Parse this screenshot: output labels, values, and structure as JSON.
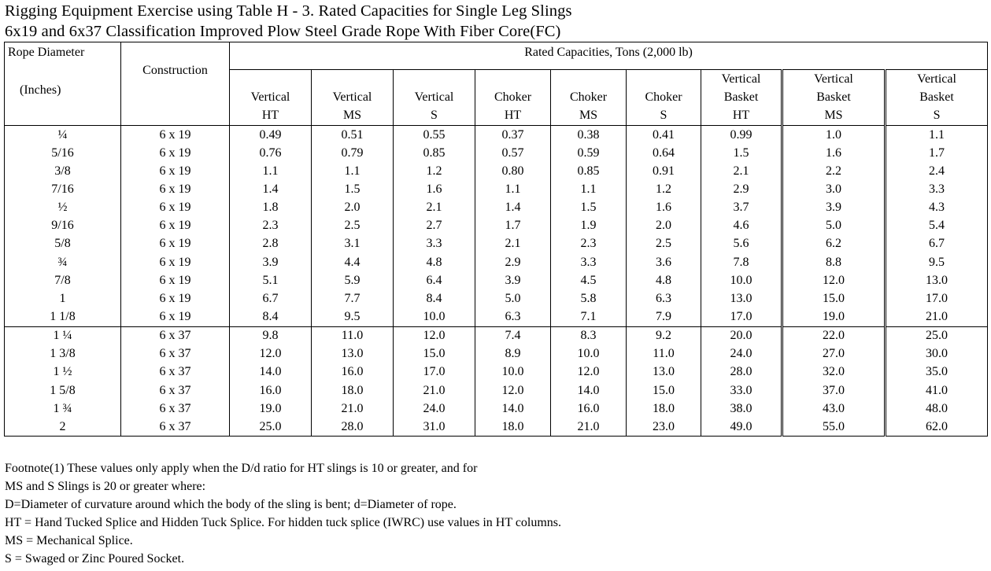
{
  "title": {
    "line1": "Rigging Equipment Exercise using Table H - 3. Rated Capacities for Single Leg Slings",
    "line2": "6x19 and 6x37 Classification Improved Plow Steel Grade Rope With Fiber Core(FC)"
  },
  "table": {
    "rope_header_1": "Rope Diameter",
    "rope_header_2": "(Inches)",
    "construction_header": "Construction",
    "rated_header": "Rated Capacities, Tons (2,000 lb)",
    "columns": [
      [
        "Vertical",
        "HT"
      ],
      [
        "Vertical",
        "MS"
      ],
      [
        "Vertical",
        "S"
      ],
      [
        "Choker",
        "HT"
      ],
      [
        "Choker",
        "MS"
      ],
      [
        "Choker",
        "S"
      ],
      [
        "Vertical",
        "Basket",
        "HT"
      ],
      [
        "Vertical",
        "Basket",
        "MS"
      ],
      [
        "Vertical",
        "Basket",
        "S"
      ]
    ],
    "rows": [
      [
        "¼",
        "6 x 19",
        "0.49",
        "0.51",
        "0.55",
        "0.37",
        "0.38",
        "0.41",
        "0.99",
        "1.0",
        "1.1"
      ],
      [
        "5/16",
        "6 x 19",
        "0.76",
        "0.79",
        "0.85",
        "0.57",
        "0.59",
        "0.64",
        "1.5",
        "1.6",
        "1.7"
      ],
      [
        "3/8",
        "6 x 19",
        "1.1",
        "1.1",
        "1.2",
        "0.80",
        "0.85",
        "0.91",
        "2.1",
        "2.2",
        "2.4"
      ],
      [
        "7/16",
        "6 x 19",
        "1.4",
        "1.5",
        "1.6",
        "1.1",
        "1.1",
        "1.2",
        "2.9",
        "3.0",
        "3.3"
      ],
      [
        "½",
        "6 x 19",
        "1.8",
        "2.0",
        "2.1",
        "1.4",
        "1.5",
        "1.6",
        "3.7",
        "3.9",
        "4.3"
      ],
      [
        "9/16",
        "6 x 19",
        "2.3",
        "2.5",
        "2.7",
        "1.7",
        "1.9",
        "2.0",
        "4.6",
        "5.0",
        "5.4"
      ],
      [
        "5/8",
        "6 x 19",
        "2.8",
        "3.1",
        "3.3",
        "2.1",
        "2.3",
        "2.5",
        "5.6",
        "6.2",
        "6.7"
      ],
      [
        "¾",
        "6 x 19",
        "3.9",
        "4.4",
        "4.8",
        "2.9",
        "3.3",
        "3.6",
        "7.8",
        "8.8",
        "9.5"
      ],
      [
        "7/8",
        "6 x 19",
        "5.1",
        "5.9",
        "6.4",
        "3.9",
        "4.5",
        "4.8",
        "10.0",
        "12.0",
        "13.0"
      ],
      [
        "1",
        "6 x 19",
        "6.7",
        "7.7",
        "8.4",
        "5.0",
        "5.8",
        "6.3",
        "13.0",
        "15.0",
        "17.0"
      ],
      [
        "1 1/8",
        "6 x 19",
        "8.4",
        "9.5",
        "10.0",
        "6.3",
        "7.1",
        "7.9",
        "17.0",
        "19.0",
        "21.0"
      ],
      [
        "1 ¼",
        "6 x 37",
        "9.8",
        "11.0",
        "12.0",
        "7.4",
        "8.3",
        "9.2",
        "20.0",
        "22.0",
        "25.0"
      ],
      [
        "1 3/8",
        "6 x 37",
        "12.0",
        "13.0",
        "15.0",
        "8.9",
        "10.0",
        "11.0",
        "24.0",
        "27.0",
        "30.0"
      ],
      [
        "1 ½",
        "6 x 37",
        "14.0",
        "16.0",
        "17.0",
        "10.0",
        "12.0",
        "13.0",
        "28.0",
        "32.0",
        "35.0"
      ],
      [
        "1 5/8",
        "6 x 37",
        "16.0",
        "18.0",
        "21.0",
        "12.0",
        "14.0",
        "15.0",
        "33.0",
        "37.0",
        "41.0"
      ],
      [
        "1 ¾",
        "6 x 37",
        "19.0",
        "21.0",
        "24.0",
        "14.0",
        "16.0",
        "18.0",
        "38.0",
        "43.0",
        "48.0"
      ],
      [
        "2",
        "6 x 37",
        "25.0",
        "28.0",
        "31.0",
        "18.0",
        "21.0",
        "23.0",
        "49.0",
        "55.0",
        "62.0"
      ]
    ]
  },
  "footnote": [
    "Footnote(1) These values only apply when the D/d ratio for HT slings is 10 or greater, and for",
    "MS and S Slings is 20 or greater where:",
    "D=Diameter of curvature around which the body of the sling is bent; d=Diameter of rope.",
    "HT = Hand Tucked Splice and Hidden Tuck Splice. For hidden tuck splice (IWRC) use values in HT columns.",
    "MS = Mechanical Splice.",
    "S  = Swaged or Zinc Poured Socket."
  ]
}
